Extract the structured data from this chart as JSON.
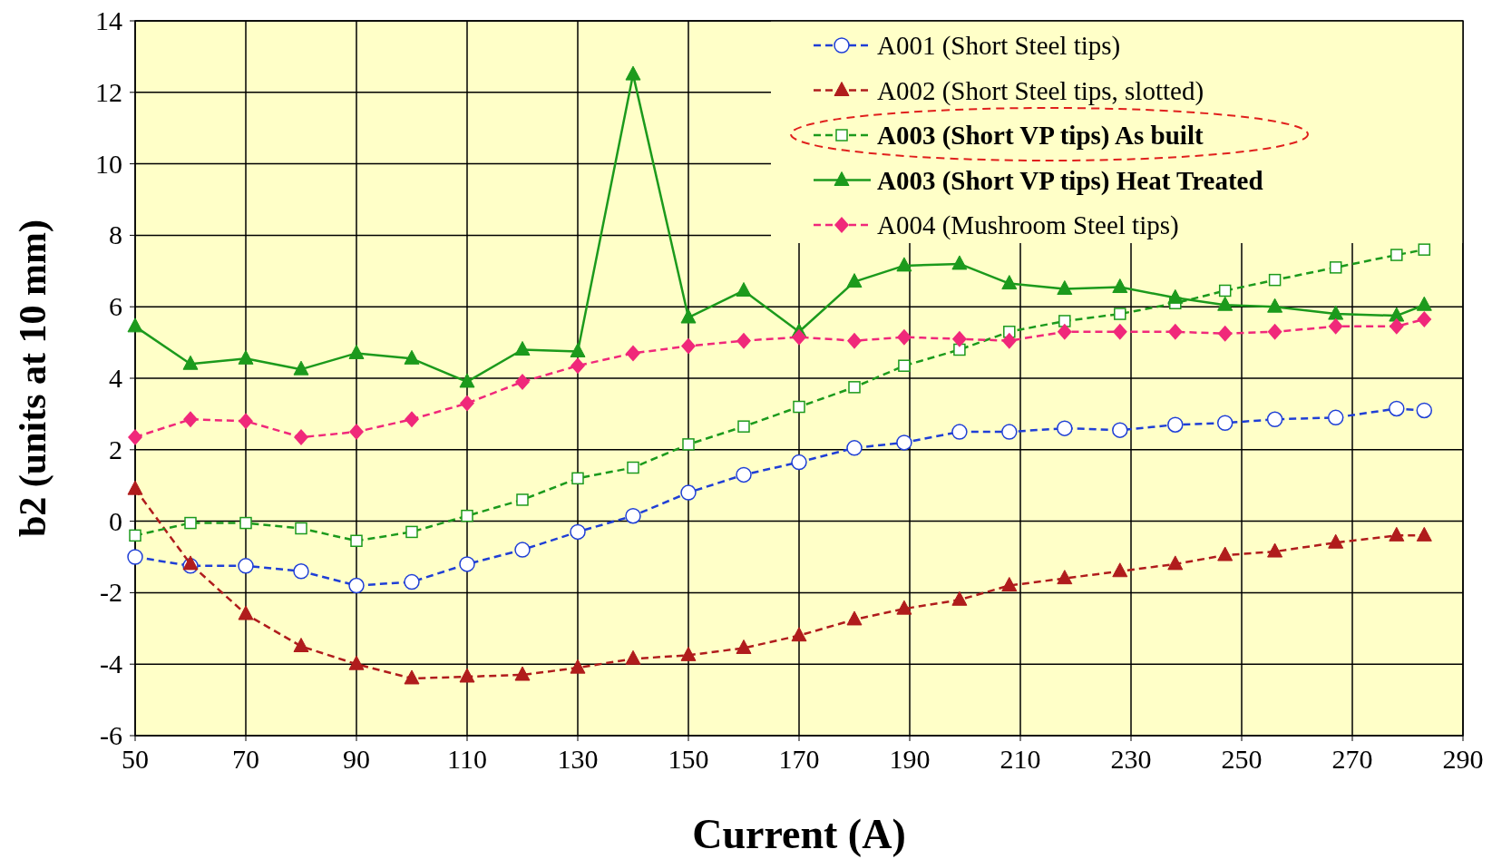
{
  "chart_data": {
    "type": "line",
    "xlabel": "Current (A)",
    "ylabel": "b2 (units at 10 mm)",
    "x": [
      50,
      60,
      70,
      80,
      90,
      100,
      110,
      120,
      130,
      140,
      150,
      160,
      170,
      180,
      189,
      199,
      208,
      218,
      228,
      238,
      247,
      256,
      267,
      278,
      283
    ],
    "series": [
      {
        "name": "A001 (Short Steel tips)",
        "color": "#1f3fd6",
        "marker": "circle",
        "line_style": "dashed",
        "values": [
          -1.0,
          -1.25,
          -1.25,
          -1.4,
          -1.8,
          -1.7,
          -1.2,
          -0.8,
          -0.3,
          0.15,
          0.8,
          1.3,
          1.65,
          2.05,
          2.2,
          2.5,
          2.5,
          2.6,
          2.55,
          2.7,
          2.75,
          2.85,
          2.9,
          3.15,
          3.1
        ]
      },
      {
        "name": "A002 (Short Steel tips, slotted)",
        "color": "#b01c1c",
        "marker": "triangle",
        "line_style": "dashed",
        "values": [
          0.9,
          -1.2,
          -2.6,
          -3.5,
          -4.0,
          -4.4,
          -4.35,
          -4.3,
          -4.1,
          -3.85,
          -3.75,
          -3.55,
          -3.2,
          -2.75,
          -2.45,
          -2.2,
          -1.8,
          -1.6,
          -1.4,
          -1.2,
          -0.95,
          -0.85,
          -0.6,
          -0.4,
          -0.4
        ]
      },
      {
        "name": "A003 (Short VP tips) As built",
        "color": "#1c9a1c",
        "marker": "square",
        "line_style": "dashed",
        "values": [
          -0.4,
          -0.05,
          -0.05,
          -0.2,
          -0.55,
          -0.3,
          0.15,
          0.6,
          1.2,
          1.5,
          2.15,
          2.65,
          3.2,
          3.75,
          4.35,
          4.8,
          5.3,
          5.6,
          5.8,
          6.1,
          6.45,
          6.75,
          7.1,
          7.45,
          7.6
        ]
      },
      {
        "name": "A003 (Short VP tips) Heat Treated",
        "color": "#1c9a1c",
        "marker": "triangle",
        "line_style": "solid",
        "values": [
          5.45,
          4.4,
          4.55,
          4.25,
          4.7,
          4.55,
          3.9,
          4.8,
          4.75,
          12.5,
          5.7,
          6.45,
          5.3,
          6.7,
          7.15,
          7.2,
          6.65,
          6.5,
          6.55,
          6.25,
          6.05,
          6.0,
          5.8,
          5.75,
          6.05
        ]
      },
      {
        "name": "A004 (Mushroom Steel tips)",
        "color": "#f0287a",
        "marker": "diamond",
        "line_style": "dashed",
        "values": [
          2.35,
          2.85,
          2.8,
          2.35,
          2.5,
          2.85,
          3.3,
          3.9,
          4.35,
          4.7,
          4.9,
          5.05,
          5.15,
          5.05,
          5.15,
          5.1,
          5.05,
          5.3,
          5.3,
          5.3,
          5.25,
          5.3,
          5.45,
          5.45,
          5.65
        ]
      }
    ],
    "xlim": [
      50,
      290
    ],
    "xticks": [
      50,
      70,
      90,
      110,
      130,
      150,
      170,
      190,
      210,
      230,
      250,
      270,
      290
    ],
    "ylim": [
      -6,
      14
    ],
    "yticks": [
      -6,
      -4,
      -2,
      0,
      2,
      4,
      6,
      8,
      10,
      12,
      14
    ],
    "grid": true,
    "legend": "top right"
  }
}
